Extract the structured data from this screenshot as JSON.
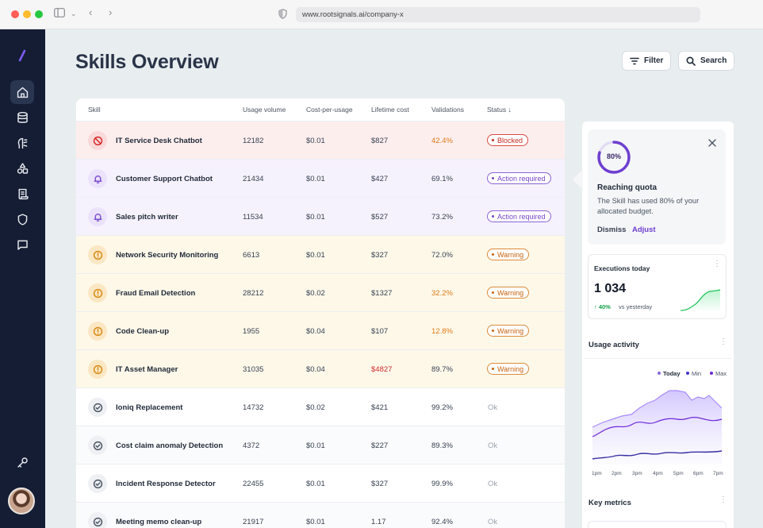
{
  "browser": {
    "url": "www.rootsignals.ai/company-x"
  },
  "page": {
    "title": "Skills Overview",
    "filter_label": "Filter",
    "search_label": "Search"
  },
  "table": {
    "headers": [
      "Skill",
      "Usage volume",
      "Cost-per-usage",
      "Lifetime cost",
      "Validations",
      "Status"
    ],
    "rows": [
      {
        "name": "IT Service Desk Chatbot",
        "usage": "12182",
        "cpu": "$0.01",
        "lifetime": "$827",
        "validations": "42.4%",
        "status": "Blocked"
      },
      {
        "name": "Customer Support Chatbot",
        "usage": "21434",
        "cpu": "$0.01",
        "lifetime": "$427",
        "validations": "69.1%",
        "status": "Action required"
      },
      {
        "name": "Sales pitch writer",
        "usage": "11534",
        "cpu": "$0.01",
        "lifetime": "$527",
        "validations": "73.2%",
        "status": "Action required"
      },
      {
        "name": "Network Security Monitoring",
        "usage": "6613",
        "cpu": "$0.01",
        "lifetime": "$327",
        "validations": "72.0%",
        "status": "Warning"
      },
      {
        "name": "Fraud Email Detection",
        "usage": "28212",
        "cpu": "$0.02",
        "lifetime": "$1327",
        "validations": "32.2%",
        "status": "Warning"
      },
      {
        "name": "Code Clean-up",
        "usage": "1955",
        "cpu": "$0.04",
        "lifetime": "$107",
        "validations": "12.8%",
        "status": "Warning"
      },
      {
        "name": "IT Asset Manager",
        "usage": "31035",
        "cpu": "$0.04",
        "lifetime": "$4827",
        "validations": "89.7%",
        "status": "Warning"
      },
      {
        "name": "Ioniq Replacement",
        "usage": "14732",
        "cpu": "$0.02",
        "lifetime": "$421",
        "validations": "99.2%",
        "status": "Ok"
      },
      {
        "name": "Cost claim anomaly Detection",
        "usage": "4372",
        "cpu": "$0.01",
        "lifetime": "$227",
        "validations": "89.3%",
        "status": "Ok"
      },
      {
        "name": "Incident Response  Detector",
        "usage": "22455",
        "cpu": "$0.01",
        "lifetime": "$327",
        "validations": "99.9%",
        "status": "Ok"
      },
      {
        "name": "Meeting memo clean-up",
        "usage": "21917",
        "cpu": "$0.01",
        "lifetime": "1.17",
        "validations": "92.4%",
        "status": "Ok"
      }
    ]
  },
  "quota_popover": {
    "percent_label": "80%",
    "percent": 0.8,
    "title": "Reaching quota",
    "text": "The Skill has used 80% of your allocated budget.",
    "dismiss": "Dismiss",
    "adjust": "Adjust"
  },
  "executions": {
    "title": "Executions today",
    "value": "1 034",
    "delta": "40%",
    "vs": "vs yesterday"
  },
  "usage_activity": {
    "title": "Usage activity",
    "legend": [
      "Today",
      "Min",
      "Max"
    ],
    "x_labels": [
      "1pm",
      "2pm",
      "3pm",
      "4pm",
      "5pm",
      "6pm",
      "7pm"
    ]
  },
  "key_metrics": {
    "title": "Key metrics"
  },
  "colors": {
    "sidebar": "#141d33",
    "accent": "#6d3fd0",
    "blocked": "#d62b2b",
    "warning": "#d98a16"
  },
  "icons": [
    "home-icon",
    "database-icon",
    "brain-icon",
    "shapes-icon",
    "scroll-icon",
    "shield-icon",
    "chat-icon",
    "key-icon"
  ]
}
